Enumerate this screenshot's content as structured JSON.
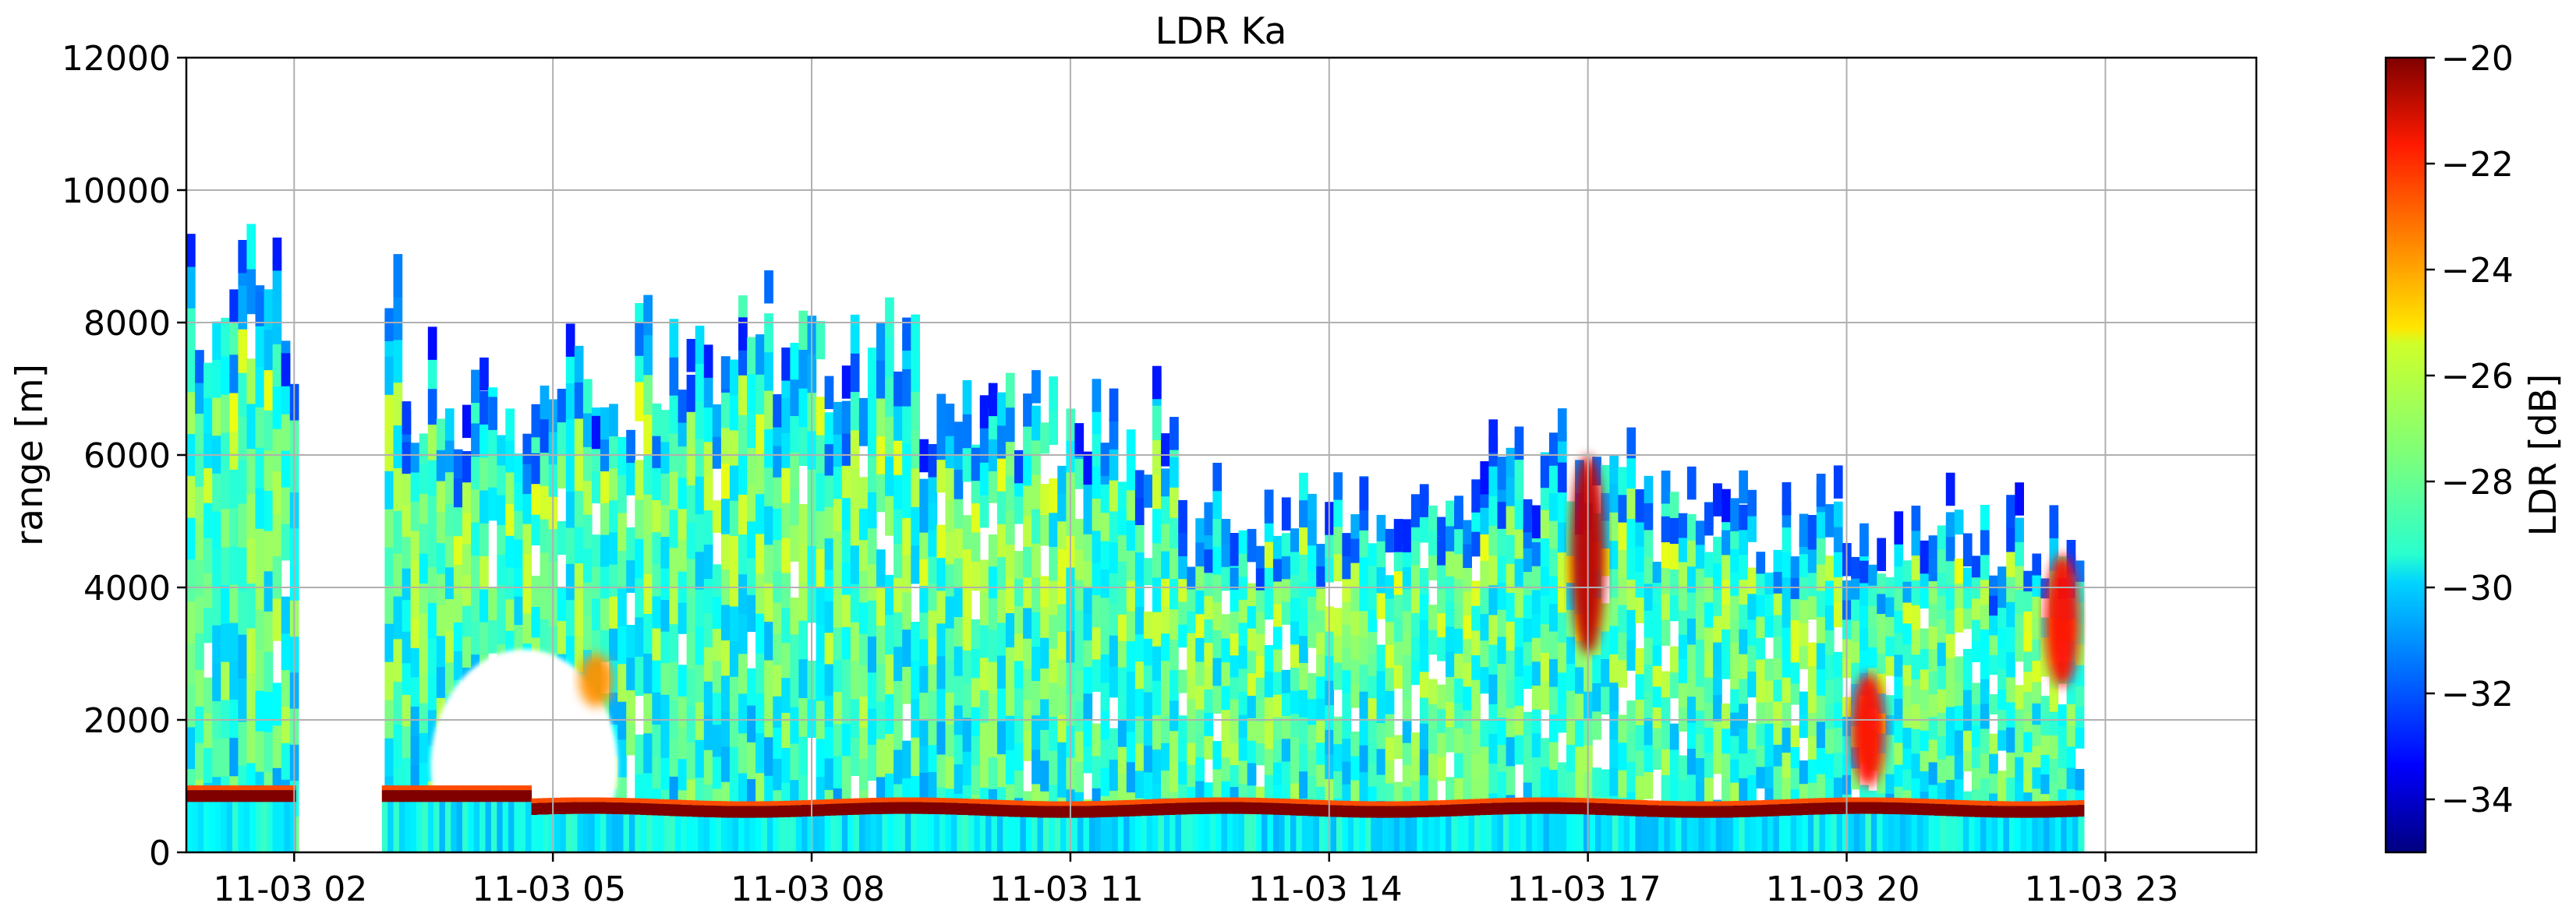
{
  "chart_data": {
    "type": "heatmap",
    "title": "LDR Ka",
    "ylabel": "range [m]",
    "xlabel": "",
    "x_axis_type": "time",
    "xlim": [
      "2023-11-03 00:45",
      "2023-11-04 00:45"
    ],
    "xticks": [
      {
        "time": "2023-11-03 02:00",
        "label": "11-03 02"
      },
      {
        "time": "2023-11-03 05:00",
        "label": "11-03 05"
      },
      {
        "time": "2023-11-03 08:00",
        "label": "11-03 08"
      },
      {
        "time": "2023-11-03 11:00",
        "label": "11-03 11"
      },
      {
        "time": "2023-11-03 14:00",
        "label": "11-03 14"
      },
      {
        "time": "2023-11-03 17:00",
        "label": "11-03 17"
      },
      {
        "time": "2023-11-03 20:00",
        "label": "11-03 20"
      },
      {
        "time": "2023-11-03 23:00",
        "label": "11-03 23"
      }
    ],
    "ylim": [
      0,
      12000
    ],
    "yticks": [
      0,
      2000,
      4000,
      6000,
      8000,
      10000,
      12000
    ],
    "grid": true,
    "colorbar": {
      "label": "LDR [dB]",
      "range": [
        -35,
        -20
      ],
      "ticks": [
        -34,
        -32,
        -30,
        -28,
        -26,
        -24,
        -22,
        -20
      ],
      "tick_labels": [
        "−34",
        "−32",
        "−30",
        "−28",
        "−26",
        "−24",
        "−22",
        "−20"
      ],
      "colormap": "jet"
    },
    "data_gap": {
      "start": "2023-11-03 02:00",
      "end": "2023-11-03 03:00",
      "description": "no data"
    },
    "data_end": "2023-11-03 22:45",
    "features": [
      {
        "kind": "melting_layer",
        "description": "bright band of high LDR near -20 dB at roughly 500-1000 m throughout the day",
        "top_m": 1000,
        "bottom_m": 450,
        "value_db": -20
      },
      {
        "kind": "cloud_field",
        "description": "widespread LDR around -30 to -27 dB from surface up to 6000-9500 m",
        "value_db": -29
      },
      {
        "kind": "high_ldr_streak",
        "time": "2023-11-03 17:00",
        "range_m": [
          3000,
          6000
        ],
        "value_db": -21
      },
      {
        "kind": "high_ldr_streak",
        "time": "2023-11-03 22:30",
        "range_m": [
          2500,
          4500
        ],
        "value_db": -22
      },
      {
        "kind": "high_ldr_streak",
        "time": "2023-11-03 20:15",
        "range_m": [
          1000,
          2700
        ],
        "value_db": -22
      },
      {
        "kind": "high_ldr_streak",
        "time": "2023-11-03 05:30",
        "range_m": [
          2200,
          3000
        ],
        "value_db": -24
      }
    ]
  }
}
